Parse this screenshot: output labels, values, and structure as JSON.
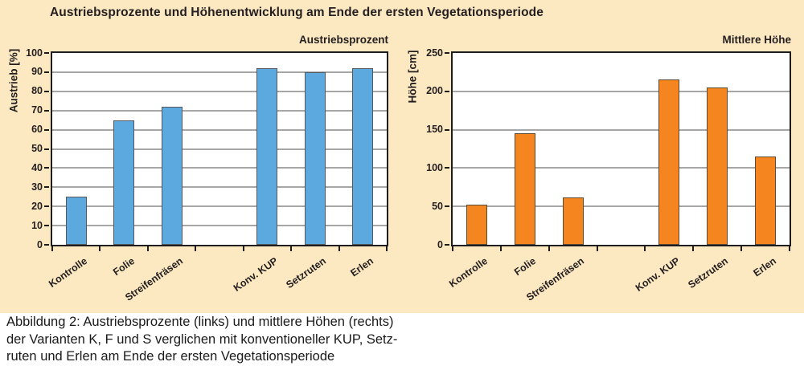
{
  "page": {
    "background": "#ffffff",
    "panel_background": "#fce8c1",
    "title": "Austriebsprozente und Höhenentwicklung am Ende der ersten Vegetationsperiode",
    "caption": "Abbildung 2: Austriebsprozente (links) und mittlere Höhen (rechts)\nder Varianten K, F und S verglichen mit konventioneller KUP, Setz-\nruten und Erlen am Ende der ersten Vegetationsperiode"
  },
  "chart_data": [
    {
      "type": "bar",
      "title": "Austriebsprozent",
      "ylabel": "Austrieb [%]",
      "xlabel": "",
      "ylim": [
        0,
        100
      ],
      "ytick_step": 10,
      "grid": true,
      "legend": "none",
      "categories": [
        "Kontrolle",
        "Folie",
        "Streifenfräsen",
        "",
        "Konv. KUP",
        "Setzruten",
        "Erlen"
      ],
      "values": [
        25,
        65,
        72,
        null,
        92,
        90,
        92
      ],
      "bar_color": "#5ca9df",
      "bar_border": "#54585c",
      "grid_color": "#a6a6a6",
      "axis_color": "#1d1d1f",
      "plot_background": "#ffffff"
    },
    {
      "type": "bar",
      "title": "Mittlere Höhe",
      "ylabel": "Höhe [cm]",
      "xlabel": "",
      "ylim": [
        0,
        250
      ],
      "ytick_step": 50,
      "grid": true,
      "legend": "none",
      "categories": [
        "Kontrolle",
        "Folie",
        "Streifenfräsen",
        "",
        "Konv. KUP",
        "Setzruten",
        "Erlen"
      ],
      "values": [
        52,
        145,
        62,
        null,
        215,
        205,
        115
      ],
      "bar_color": "#f5861f",
      "bar_border": "#5b4a33",
      "grid_color": "#a6a6a6",
      "axis_color": "#1d1d1f",
      "plot_background": "#ffffff"
    }
  ]
}
